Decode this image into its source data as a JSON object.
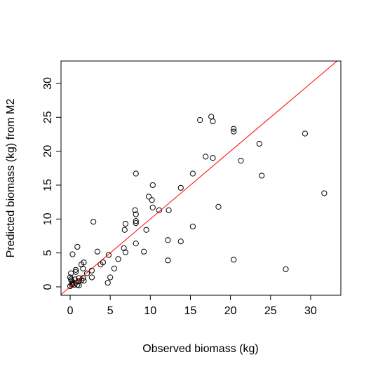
{
  "chart_data": {
    "type": "scatter",
    "x_label": "Observed biomass (kg)",
    "y_label": "Predicted biomass (kg) from M2",
    "color": "#000000",
    "diagonal": {
      "slope": 1,
      "intercept": 0,
      "color": "#ff0000"
    },
    "xlim": [
      -1.14,
      33.77
    ],
    "ylim": [
      -1.24,
      33.3
    ],
    "xticks": [
      0,
      5,
      10,
      15,
      20,
      25,
      30
    ],
    "yticks": [
      0,
      5,
      10,
      15,
      20,
      25,
      30
    ],
    "x": [
      16.2,
      17.6,
      17.8,
      20.4,
      20.4,
      29.3,
      23.6,
      16.9,
      17.8,
      21.3,
      8.2,
      15.3,
      23.9,
      10.3,
      13.8,
      31.7,
      9.8,
      10.2,
      8.1,
      8.2,
      10.3,
      11.1,
      12.3,
      18.5,
      8.2,
      8.2,
      2.9,
      6.9,
      6.8,
      9.5,
      15.3,
      12.2,
      13.8,
      8.2,
      0.9,
      6.7,
      6.9,
      9.2,
      3.4,
      0.3,
      4.8,
      6.0,
      12.2,
      20.4,
      4.1,
      1.7,
      1.4,
      3.8,
      5.5,
      1.6,
      0.7,
      26.9,
      2.7,
      0.7,
      2.1,
      0.1,
      5.0,
      2.7,
      4.7,
      1.1,
      0,
      0.1,
      0.2,
      0.3,
      0.3,
      0.5,
      0.7,
      0.9,
      1.1,
      1.7,
      1.6,
      0.6,
      0,
      0.2,
      1.0,
      1.4
    ],
    "values": [
      24.6,
      25.1,
      24.4,
      23.3,
      22.9,
      22.6,
      21.1,
      19.2,
      19.0,
      18.6,
      16.7,
      16.7,
      16.4,
      15.0,
      14.6,
      13.8,
      13.3,
      12.8,
      11.3,
      10.7,
      11.7,
      11.3,
      11.3,
      11.8,
      9.7,
      9.4,
      9.6,
      9.3,
      8.4,
      8.4,
      8.9,
      6.9,
      6.7,
      6.4,
      5.9,
      5.7,
      5.1,
      5.2,
      5.2,
      4.8,
      4.7,
      4.1,
      3.9,
      4.0,
      3.6,
      3.6,
      3.3,
      3.3,
      2.7,
      2.7,
      2.5,
      2.6,
      2.4,
      2.2,
      2.0,
      2.0,
      1.4,
      1.4,
      0.6,
      1.3,
      1.4,
      1.1,
      0.9,
      0.6,
      0.4,
      0.3,
      0.6,
      0.3,
      0.2,
      0.9,
      1.3,
      1.1,
      0.1,
      0.3,
      0.8,
      1.0
    ]
  }
}
